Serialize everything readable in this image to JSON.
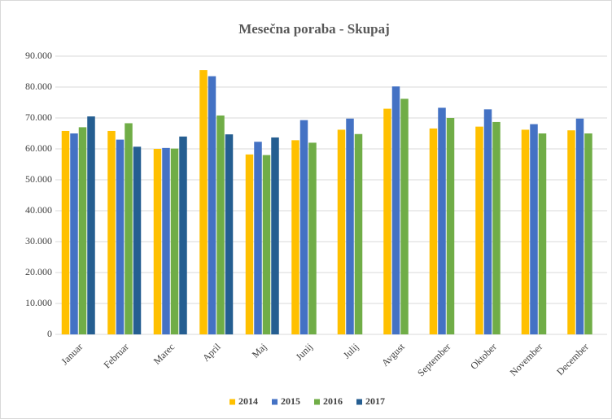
{
  "chart_data": {
    "type": "bar",
    "title": "Mesečna poraba - Skupaj",
    "categories": [
      "Januar",
      "Februar",
      "Marec",
      "April",
      "Maj",
      "Junij",
      "Julij",
      "Avgust",
      "September",
      "Oktober",
      "November",
      "December"
    ],
    "series": [
      {
        "name": "2014",
        "color": "#FFC000",
        "values": [
          65800,
          65800,
          60000,
          85500,
          58200,
          62800,
          66200,
          73000,
          66600,
          67200,
          66200,
          66000
        ]
      },
      {
        "name": "2015",
        "color": "#4472C4",
        "values": [
          65000,
          63000,
          60300,
          83500,
          62300,
          69300,
          69800,
          80200,
          73300,
          72800,
          68000,
          69800
        ]
      },
      {
        "name": "2016",
        "color": "#70AD47",
        "values": [
          67000,
          68300,
          60100,
          70800,
          58000,
          62000,
          64800,
          76200,
          70000,
          68700,
          65000,
          65000
        ]
      },
      {
        "name": "2017",
        "color": "#255E91",
        "values": [
          70500,
          60700,
          64000,
          64700,
          63700,
          null,
          null,
          null,
          null,
          null,
          null,
          null
        ]
      }
    ],
    "ylim": [
      0,
      90000
    ],
    "yticks": [
      0,
      {
        "value": 10000,
        "label": "10.000"
      },
      {
        "value": 20000,
        "label": "20.000"
      },
      {
        "value": 30000,
        "label": "30.000"
      },
      {
        "value": 40000,
        "label": "40.000"
      },
      {
        "value": 50000,
        "label": "50.000"
      },
      {
        "value": 60000,
        "label": "60.000"
      },
      {
        "value": 70000,
        "label": "70.000"
      },
      {
        "value": 80000,
        "label": "80.000"
      },
      {
        "value": 90000,
        "label": "90.000"
      }
    ],
    "grid": true,
    "legend": "bottom"
  }
}
